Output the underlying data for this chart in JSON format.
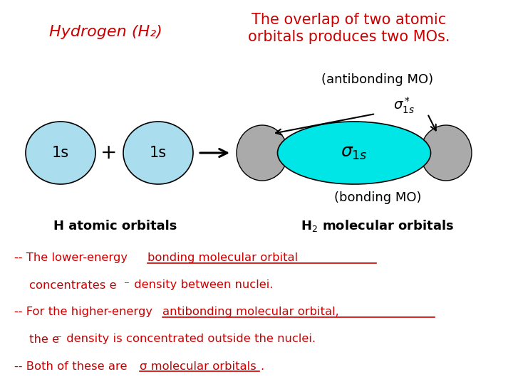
{
  "bg_color": "#ffffff",
  "title_italic": "Hydrogen (H₂)",
  "title_color": "#cc0000",
  "top_text": "The overlap of two atomic\norbitals produces two MOs.",
  "top_text_color": "#cc0000",
  "antibonding_label": "(antibonding MO)",
  "bonding_label": "(bonding MO)",
  "h_atomic_label": "H atomic orbitals",
  "orbital_1s_color": "#aaddee",
  "molecular_orbital_color": "#00e5e5",
  "antibonding_orbital_color": "#aaaaaa",
  "text_color": "#cc0000",
  "figsize": [
    7.2,
    5.4
  ],
  "dpi": 100
}
